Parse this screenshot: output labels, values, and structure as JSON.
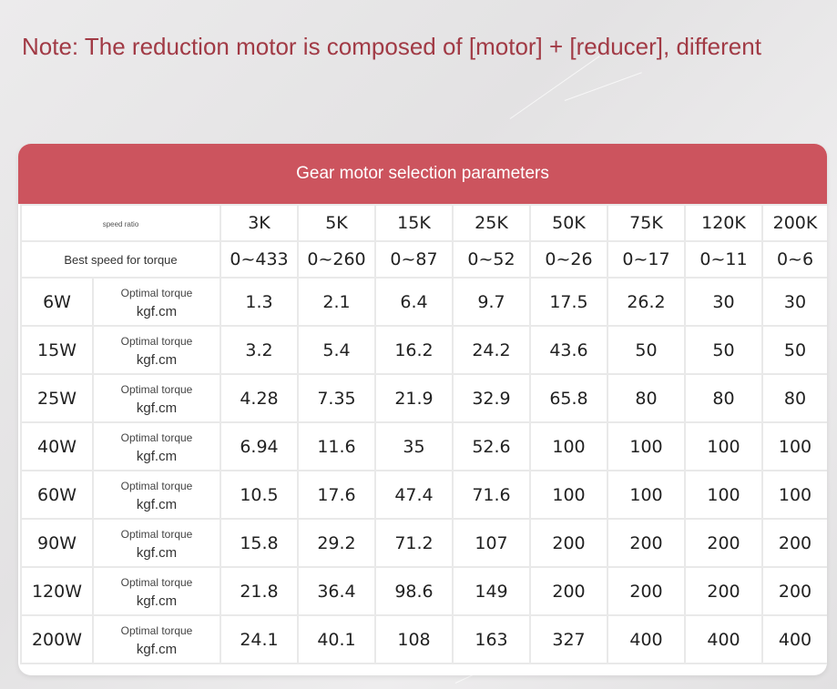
{
  "note": "Note: The reduction motor is composed of [motor] + [reducer], different",
  "title": "Gear motor selection parameters",
  "ratio_label": "speed ratio",
  "best_speed_label": "Best speed for torque",
  "ratios": [
    "3K",
    "5K",
    "15K",
    "25K",
    "50K",
    "75K",
    "120K",
    "200K"
  ],
  "speeds": [
    "0~433",
    "0~260",
    "0~87",
    "0~52",
    "0~26",
    "0~17",
    "0~11",
    "0~6"
  ],
  "torque_label": "Optimal torque",
  "torque_unit": "kgf.cm",
  "rows": [
    {
      "power": "6W",
      "values": [
        "1.3",
        "2.1",
        "6.4",
        "9.7",
        "17.5",
        "26.2",
        "30",
        "30"
      ]
    },
    {
      "power": "15W",
      "values": [
        "3.2",
        "5.4",
        "16.2",
        "24.2",
        "43.6",
        "50",
        "50",
        "50"
      ]
    },
    {
      "power": "25W",
      "values": [
        "4.28",
        "7.35",
        "21.9",
        "32.9",
        "65.8",
        "80",
        "80",
        "80"
      ]
    },
    {
      "power": "40W",
      "values": [
        "6.94",
        "11.6",
        "35",
        "52.6",
        "100",
        "100",
        "100",
        "100"
      ]
    },
    {
      "power": "60W",
      "values": [
        "10.5",
        "17.6",
        "47.4",
        "71.6",
        "100",
        "100",
        "100",
        "100"
      ]
    },
    {
      "power": "90W",
      "values": [
        "15.8",
        "29.2",
        "71.2",
        "107",
        "200",
        "200",
        "200",
        "200"
      ]
    },
    {
      "power": "120W",
      "values": [
        "21.8",
        "36.4",
        "98.6",
        "149",
        "200",
        "200",
        "200",
        "200"
      ]
    },
    {
      "power": "200W",
      "values": [
        "24.1",
        "40.1",
        "108",
        "163",
        "327",
        "400",
        "400",
        "400"
      ]
    }
  ],
  "colors": {
    "header_bg": "#cc545e",
    "note_text": "#a13a45"
  }
}
